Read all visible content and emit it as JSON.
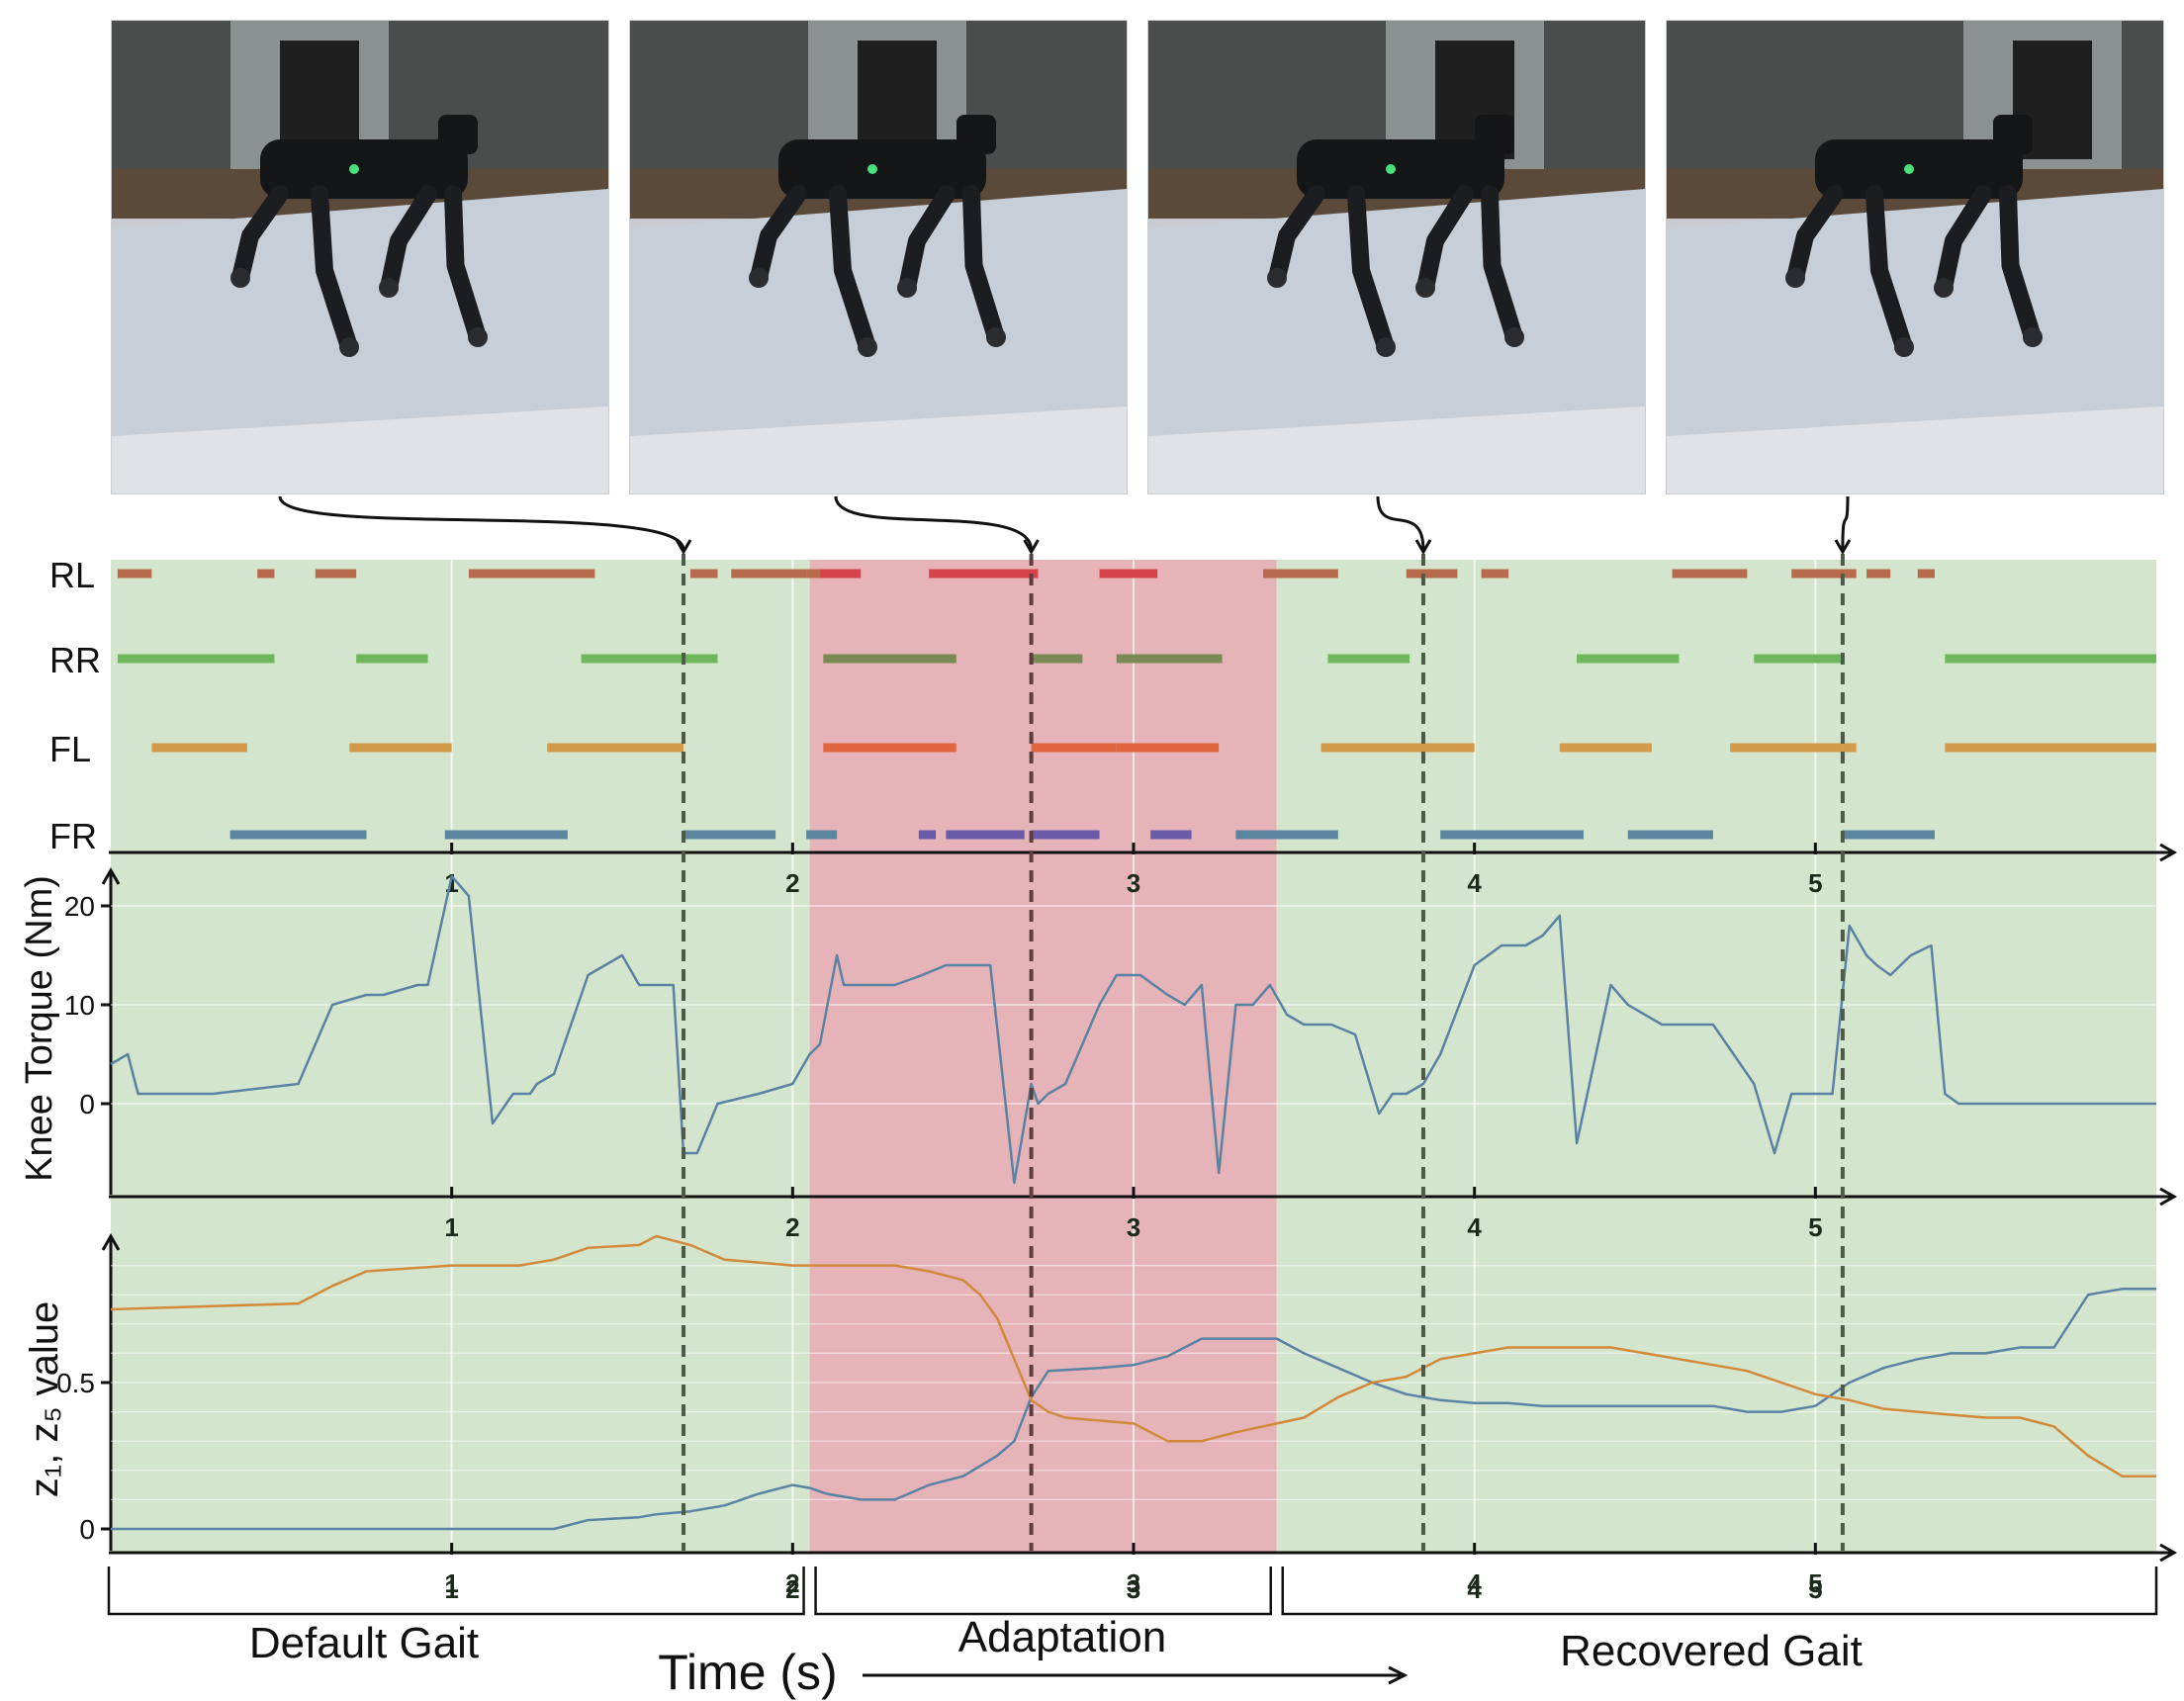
{
  "photos": [
    {
      "caption": ""
    },
    {
      "caption": ""
    },
    {
      "caption": ""
    },
    {
      "caption": ""
    }
  ],
  "labels": {
    "ylabel_torque": "Knee Torque (Nm)",
    "ylabel_z": "z₁, z₅ value",
    "xlabel": "Time (s)",
    "phase_default": "Default Gait",
    "phase_adaptation": "Adaptation",
    "phase_recovered": "Recovered Gait",
    "leg_rl": "RL",
    "leg_rr": "RR",
    "leg_fl": "FL",
    "leg_fr": "FR"
  },
  "colors": {
    "green_bg": "#d3e6cd",
    "red_bg": "#e6b3b9",
    "rl": "#b86a4d",
    "rr": "#6eb85b",
    "fl": "#d39a4a",
    "fr": "#5a86a0",
    "torque": "#5a83a3",
    "z1": "#5a83a3",
    "z5": "#d2893a",
    "dashed": "#4d5a47"
  },
  "chart_data": [
    {
      "type": "gait-timeline",
      "x_ticks": [
        "1",
        "2",
        "3",
        "4",
        "5"
      ],
      "xlim": [
        0,
        6
      ],
      "phases": [
        {
          "name": "Default Gait",
          "start": 0,
          "end": 2.05
        },
        {
          "name": "Adaptation",
          "start": 2.05,
          "end": 3.42
        },
        {
          "name": "Recovered Gait",
          "start": 3.42,
          "end": 6
        }
      ],
      "markers": [
        1.68,
        2.7,
        3.85,
        5.08
      ],
      "legs": [
        {
          "name": "RL",
          "segments": [
            [
              0.02,
              0.12
            ],
            [
              0.43,
              0.48
            ],
            [
              0.6,
              0.72
            ],
            [
              1.05,
              1.42
            ],
            [
              1.7,
              1.78
            ],
            [
              1.82,
              2.04
            ],
            [
              2.04,
              2.08
            ],
            [
              2.08,
              2.2
            ],
            [
              2.4,
              2.72
            ],
            [
              2.9,
              3.07
            ],
            [
              3.38,
              3.6
            ],
            [
              3.8,
              3.95
            ],
            [
              4.02,
              4.1
            ],
            [
              4.58,
              4.8
            ],
            [
              4.93,
              5.12
            ],
            [
              5.15,
              5.22
            ],
            [
              5.3,
              5.35
            ]
          ]
        },
        {
          "name": "RR",
          "segments": [
            [
              0.02,
              0.48
            ],
            [
              0.72,
              0.93
            ],
            [
              1.38,
              1.68
            ],
            [
              1.68,
              1.78
            ],
            [
              2.09,
              2.48
            ],
            [
              2.7,
              2.85
            ],
            [
              2.95,
              3.26
            ],
            [
              3.57,
              3.81
            ],
            [
              4.3,
              4.6
            ],
            [
              4.82,
              5.08
            ],
            [
              5.38,
              6.0
            ]
          ]
        },
        {
          "name": "FL",
          "segments": [
            [
              0.12,
              0.4
            ],
            [
              0.7,
              1.0
            ],
            [
              1.28,
              1.68
            ],
            [
              1.68,
              1.68
            ],
            [
              2.09,
              2.48
            ],
            [
              2.7,
              2.95
            ],
            [
              2.95,
              3.25
            ],
            [
              3.55,
              3.85
            ],
            [
              3.85,
              4.0
            ],
            [
              4.25,
              4.52
            ],
            [
              4.75,
              5.08
            ],
            [
              5.08,
              5.12
            ],
            [
              5.38,
              6.0
            ]
          ]
        },
        {
          "name": "FR",
          "segments": [
            [
              0.35,
              0.75
            ],
            [
              0.98,
              1.34
            ],
            [
              1.68,
              1.95
            ],
            [
              2.04,
              2.13
            ],
            [
              2.37,
              2.42
            ],
            [
              2.45,
              2.68
            ],
            [
              2.7,
              2.9
            ],
            [
              3.05,
              3.17
            ],
            [
              3.3,
              3.6
            ],
            [
              3.9,
              4.32
            ],
            [
              4.45,
              4.7
            ],
            [
              5.08,
              5.35
            ]
          ]
        }
      ]
    },
    {
      "type": "line",
      "ylabel": "Knee Torque (Nm)",
      "x_ticks": [
        "1",
        "2",
        "3",
        "4",
        "5"
      ],
      "y_ticks": [
        "0",
        "10",
        "20"
      ],
      "xlim": [
        0,
        6
      ],
      "ylim": [
        -9,
        25
      ],
      "series": [
        {
          "x": [
            0,
            0.05,
            0.08,
            0.15,
            0.3,
            0.55,
            0.65,
            0.75,
            0.8,
            0.9,
            0.93,
            1.0,
            1.05,
            1.12,
            1.18,
            1.21,
            1.23,
            1.25,
            1.3,
            1.4,
            1.5,
            1.55,
            1.6,
            1.65,
            1.68,
            1.72,
            1.78,
            1.9,
            2.0,
            2.05,
            2.08,
            2.13,
            2.15,
            2.22,
            2.3,
            2.38,
            2.45,
            2.52,
            2.58,
            2.65,
            2.7,
            2.72,
            2.75,
            2.8,
            2.85,
            2.9,
            2.95,
            3.02,
            3.1,
            3.15,
            3.2,
            3.25,
            3.3,
            3.35,
            3.4,
            3.45,
            3.5,
            3.58,
            3.65,
            3.72,
            3.76,
            3.8,
            3.85,
            3.9,
            4.0,
            4.08,
            4.15,
            4.2,
            4.25,
            4.3,
            4.4,
            4.45,
            4.55,
            4.62,
            4.7,
            4.82,
            4.88,
            4.93,
            4.98,
            5.05,
            5.1,
            5.15,
            5.18,
            5.22,
            5.28,
            5.34,
            5.38,
            5.42,
            5.5,
            5.6,
            5.7,
            5.8,
            5.9,
            6.0
          ],
          "values": [
            4,
            5,
            1,
            1,
            1,
            2,
            10,
            11,
            11,
            12,
            12,
            23,
            21,
            -2,
            1,
            1,
            1,
            2,
            3,
            13,
            15,
            12,
            12,
            12,
            -5,
            -5,
            0,
            1,
            2,
            5,
            6,
            15,
            12,
            12,
            12,
            13,
            14,
            14,
            14,
            -8,
            2,
            0,
            1,
            2,
            6,
            10,
            13,
            13,
            11,
            10,
            12,
            -7,
            10,
            10,
            12,
            9,
            8,
            8,
            7,
            -1,
            1,
            1,
            2,
            5,
            14,
            16,
            16,
            17,
            19,
            -4,
            12,
            10,
            8,
            8,
            8,
            2,
            -5,
            1,
            1,
            1,
            18,
            15,
            14,
            13,
            15,
            16,
            1,
            0,
            0,
            0,
            0,
            0,
            0,
            0
          ]
        }
      ]
    },
    {
      "type": "line",
      "ylabel": "z₁, z₅ value",
      "x_ticks": [
        "1",
        "2",
        "3",
        "4",
        "5"
      ],
      "y_ticks": [
        "0",
        "0.5"
      ],
      "xlim": [
        0,
        6
      ],
      "ylim": [
        -0.05,
        1.0
      ],
      "series": [
        {
          "name": "z₁",
          "x": [
            0,
            1.3,
            1.4,
            1.55,
            1.6,
            1.7,
            1.8,
            1.85,
            1.9,
            2.0,
            2.05,
            2.1,
            2.2,
            2.3,
            2.4,
            2.5,
            2.6,
            2.65,
            2.7,
            2.75,
            2.9,
            3.0,
            3.1,
            3.2,
            3.3,
            3.42,
            3.5,
            3.6,
            3.7,
            3.8,
            3.9,
            4.0,
            4.1,
            4.2,
            4.3,
            4.4,
            4.5,
            4.6,
            4.7,
            4.8,
            4.9,
            5.0,
            5.1,
            5.2,
            5.3,
            5.4,
            5.5,
            5.6,
            5.7,
            5.8,
            5.9,
            6.0
          ],
          "values": [
            0,
            0,
            0.03,
            0.04,
            0.05,
            0.06,
            0.08,
            0.1,
            0.12,
            0.15,
            0.14,
            0.12,
            0.1,
            0.1,
            0.15,
            0.18,
            0.25,
            0.3,
            0.45,
            0.54,
            0.55,
            0.56,
            0.59,
            0.65,
            0.65,
            0.65,
            0.6,
            0.55,
            0.5,
            0.46,
            0.44,
            0.43,
            0.43,
            0.42,
            0.42,
            0.42,
            0.42,
            0.42,
            0.42,
            0.4,
            0.4,
            0.42,
            0.5,
            0.55,
            0.58,
            0.6,
            0.6,
            0.62,
            0.62,
            0.8,
            0.82,
            0.82
          ]
        },
        {
          "name": "z₅",
          "x": [
            0,
            0.55,
            0.65,
            0.75,
            1.0,
            1.2,
            1.3,
            1.4,
            1.55,
            1.6,
            1.7,
            1.8,
            1.9,
            2.0,
            2.05,
            2.2,
            2.3,
            2.4,
            2.5,
            2.55,
            2.6,
            2.65,
            2.7,
            2.75,
            2.8,
            3.0,
            3.1,
            3.2,
            3.3,
            3.42,
            3.5,
            3.6,
            3.7,
            3.8,
            3.9,
            4.0,
            4.1,
            4.2,
            4.3,
            4.4,
            4.5,
            4.6,
            4.7,
            4.8,
            4.9,
            5.0,
            5.05,
            5.1,
            5.2,
            5.3,
            5.4,
            5.5,
            5.6,
            5.7,
            5.8,
            5.9,
            6.0
          ],
          "values": [
            0.75,
            0.77,
            0.83,
            0.88,
            0.9,
            0.9,
            0.92,
            0.96,
            0.97,
            1.0,
            0.97,
            0.92,
            0.91,
            0.9,
            0.9,
            0.9,
            0.9,
            0.88,
            0.85,
            0.8,
            0.72,
            0.58,
            0.44,
            0.4,
            0.38,
            0.36,
            0.3,
            0.3,
            0.33,
            0.36,
            0.38,
            0.45,
            0.5,
            0.52,
            0.58,
            0.6,
            0.62,
            0.62,
            0.62,
            0.62,
            0.6,
            0.58,
            0.56,
            0.54,
            0.5,
            0.46,
            0.45,
            0.44,
            0.41,
            0.4,
            0.39,
            0.38,
            0.38,
            0.35,
            0.25,
            0.18,
            0.18
          ]
        }
      ]
    }
  ]
}
